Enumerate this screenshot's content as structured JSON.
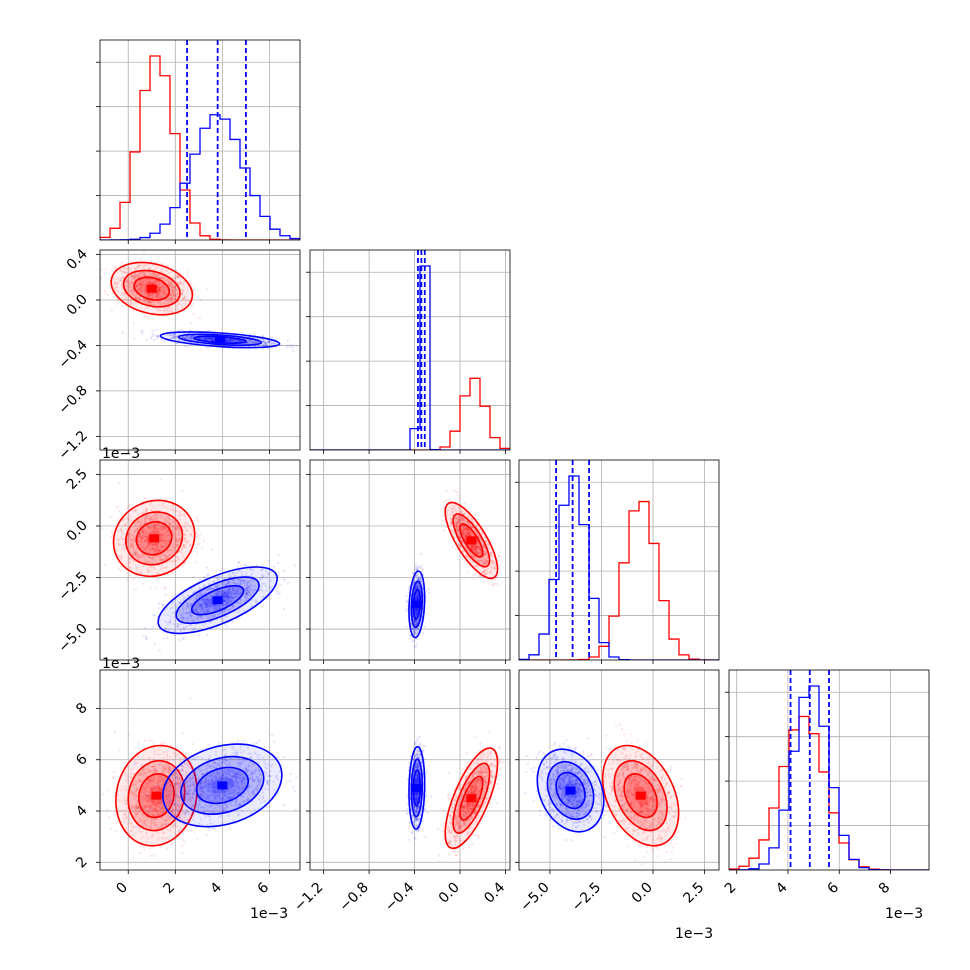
{
  "chart_data": {
    "type": "corner",
    "n_params": 4,
    "series": [
      {
        "color": "#ff0000",
        "param_means": [
          1.2,
          0.12,
          -0.6,
          4.6
        ],
        "param_sds": [
          0.75,
          0.1,
          0.8,
          0.85
        ],
        "mode_2d": {
          "1-0": [
            1.0,
            0.1
          ],
          "2-0": [
            1.1,
            -0.6
          ],
          "2-1": [
            0.1,
            -0.7
          ],
          "3-0": [
            1.2,
            4.6
          ],
          "3-1": [
            0.1,
            4.5
          ],
          "3-2": [
            -0.6,
            4.6
          ]
        }
      },
      {
        "color": "#0000ff",
        "param_means": [
          3.8,
          -0.33,
          -3.9,
          4.9
        ],
        "param_sds": [
          1.1,
          0.03,
          0.7,
          0.7
        ],
        "mode_2d": {
          "1-0": [
            3.9,
            -0.35
          ],
          "2-0": [
            3.8,
            -3.6
          ],
          "2-1": [
            -0.38,
            -3.8
          ],
          "3-0": [
            4.0,
            5.0
          ],
          "3-1": [
            -0.38,
            4.9
          ],
          "3-2": [
            -4.0,
            4.8
          ]
        }
      }
    ],
    "quantiles": [
      {
        "param": 0,
        "values": [
          2.5,
          3.8,
          5.0
        ]
      },
      {
        "param": 1,
        "values": [
          -0.37,
          -0.34,
          -0.31
        ]
      },
      {
        "param": 2,
        "values": [
          -4.7,
          -3.9,
          -3.1
        ]
      },
      {
        "param": 3,
        "values": [
          4.1,
          4.85,
          5.6
        ]
      }
    ],
    "quantile_color": "#0000ff",
    "axes": [
      {
        "range": [
          -1.2,
          7.3
        ],
        "ticks": [
          0,
          2,
          4,
          6
        ],
        "tick_labels": [
          "0",
          "2",
          "4",
          "6"
        ],
        "offset_label": "1e−3"
      },
      {
        "range": [
          -1.32,
          0.44
        ],
        "ticks": [
          -1.2,
          -0.8,
          -0.4,
          0.0,
          0.4
        ],
        "tick_labels": [
          "−1.2",
          "−0.8",
          "−0.4",
          "0.0",
          "0.4"
        ],
        "offset_label": ""
      },
      {
        "range": [
          -6.5,
          3.2
        ],
        "ticks": [
          -5.0,
          -2.5,
          0.0,
          2.5
        ],
        "tick_labels": [
          "−5.0",
          "−2.5",
          "0.0",
          "2.5"
        ],
        "offset_label": "1e−3"
      },
      {
        "range": [
          1.7,
          9.5
        ],
        "ticks": [
          2,
          4,
          6,
          8
        ],
        "tick_labels": [
          "2",
          "4",
          "6",
          "8"
        ],
        "offset_label": "1e−3"
      }
    ],
    "grid": true,
    "title": "",
    "legend": "none"
  }
}
